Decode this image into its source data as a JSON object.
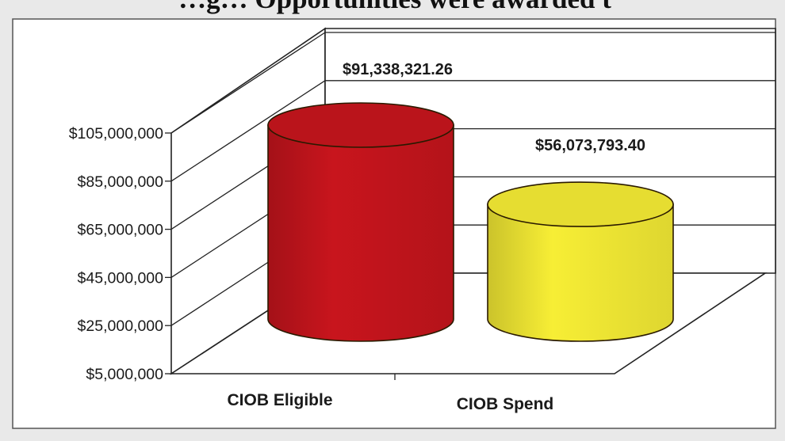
{
  "chart_data": {
    "type": "bar",
    "shape": "3d-cylinder",
    "title": "…g… Opportunities were awarded t",
    "categories": [
      "CIOB Eligible",
      "CIOB Spend"
    ],
    "values": [
      91338321.26,
      56073793.4
    ],
    "data_labels": [
      "$91,338,321.26",
      "$56,073,793.40"
    ],
    "bar_colors": [
      "#c8151d",
      "#f7ee35"
    ],
    "y_ticks": [
      "$105,000,000",
      "$85,000,000",
      "$65,000,000",
      "$45,000,000",
      "$25,000,000",
      "$5,000,000"
    ],
    "ylim": [
      5000000,
      105000000
    ],
    "grid": true,
    "legend": "none"
  }
}
